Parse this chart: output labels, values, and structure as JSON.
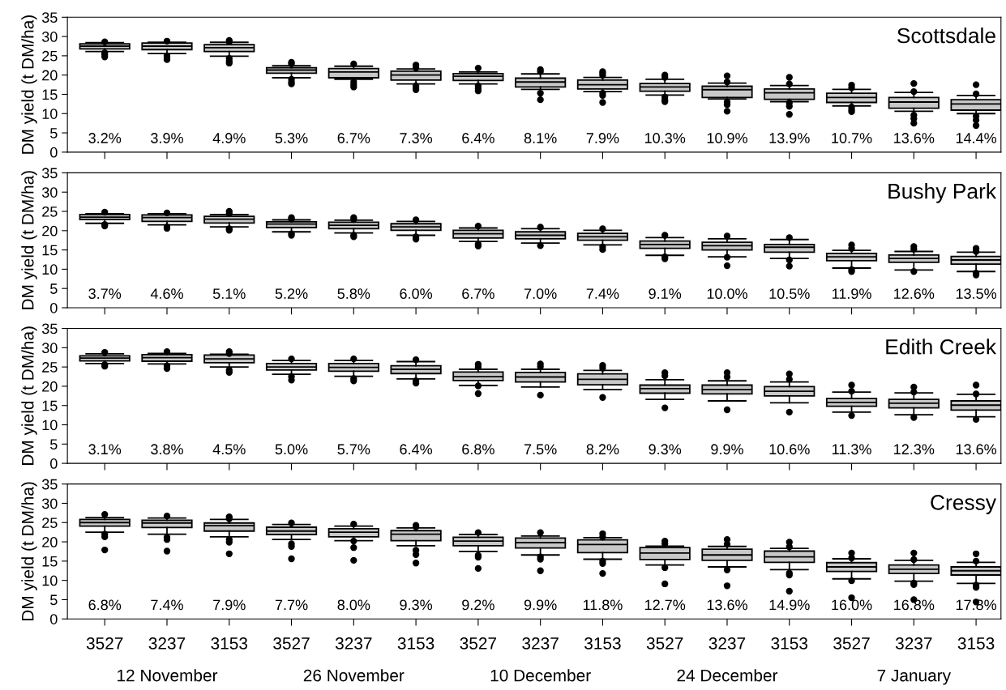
{
  "chart_data": [
    {
      "type": "box",
      "title": "Scottsdale",
      "ylabel": "DM yield (t DM/ha)",
      "categories": [
        "3527",
        "3237",
        "3153",
        "3527",
        "3237",
        "3153",
        "3527",
        "3237",
        "3153",
        "3527",
        "3237",
        "3153",
        "3527",
        "3237",
        "3153"
      ],
      "ylim": [
        0,
        35
      ],
      "yticks": [
        0,
        5,
        10,
        15,
        20,
        25,
        30,
        35
      ],
      "tick_labels": "y",
      "color": "#c8c8c8",
      "value_labels": [
        "3.2%",
        "3.9%",
        "4.9%",
        "5.3%",
        "6.7%",
        "7.3%",
        "6.4%",
        "8.1%",
        "7.9%",
        "10.3%",
        "10.9%",
        "13.9%",
        "10.7%",
        "13.6%",
        "14.4%"
      ],
      "boxes": [
        {
          "low": 26.1,
          "q1": 26.8,
          "median": 27.5,
          "q3": 28.1,
          "high": 28.4,
          "outliers": [
            28.6,
            25.8,
            25.3,
            24.7
          ]
        },
        {
          "low": 25.6,
          "q1": 26.6,
          "median": 27.5,
          "q3": 28.3,
          "high": 28.5,
          "outliers": [
            28.8,
            25.0,
            24.5,
            24.0
          ]
        },
        {
          "low": 24.9,
          "q1": 26.1,
          "median": 27.1,
          "q3": 27.9,
          "high": 28.5,
          "outliers": [
            29.0,
            28.6,
            24.3,
            23.6,
            23.1
          ]
        },
        {
          "low": 19.3,
          "q1": 20.5,
          "median": 21.3,
          "q3": 21.9,
          "high": 22.4,
          "outliers": [
            23.3,
            22.9,
            18.9,
            18.2,
            17.7
          ]
        },
        {
          "low": 18.9,
          "q1": 19.3,
          "median": 20.8,
          "q3": 21.7,
          "high": 22.3,
          "outliers": [
            22.9,
            18.2,
            17.5,
            16.9
          ]
        },
        {
          "low": 17.7,
          "q1": 18.7,
          "median": 20.0,
          "q3": 21.0,
          "high": 21.6,
          "outliers": [
            22.6,
            21.9,
            17.2,
            16.7,
            16.2
          ]
        },
        {
          "low": 17.7,
          "q1": 18.6,
          "median": 19.7,
          "q3": 20.4,
          "high": 20.8,
          "outliers": [
            21.8,
            17.2,
            16.5,
            15.9
          ]
        },
        {
          "low": 16.3,
          "q1": 16.9,
          "median": 18.2,
          "q3": 19.2,
          "high": 20.3,
          "outliers": [
            21.4,
            20.9,
            15.3,
            13.6
          ]
        },
        {
          "low": 15.7,
          "q1": 16.4,
          "median": 17.5,
          "q3": 18.7,
          "high": 19.4,
          "outliers": [
            20.9,
            20.4,
            19.9,
            15.3,
            14.7,
            12.9
          ]
        },
        {
          "low": 14.8,
          "q1": 15.8,
          "median": 16.9,
          "q3": 17.8,
          "high": 18.9,
          "outliers": [
            20.0,
            19.4,
            14.3,
            13.6,
            13.1
          ]
        },
        {
          "low": 13.8,
          "q1": 14.2,
          "median": 16.2,
          "q3": 17.1,
          "high": 17.9,
          "outliers": [
            19.8,
            18.2,
            13.0,
            12.3,
            10.6
          ]
        },
        {
          "low": 13.1,
          "q1": 13.7,
          "median": 15.4,
          "q3": 16.4,
          "high": 17.3,
          "outliers": [
            19.4,
            17.7,
            12.8,
            11.9,
            9.8
          ]
        },
        {
          "low": 12.0,
          "q1": 12.9,
          "median": 14.2,
          "q3": 15.3,
          "high": 16.3,
          "outliers": [
            17.4,
            16.7,
            11.7,
            11.0,
            10.5
          ]
        },
        {
          "low": 10.6,
          "q1": 11.4,
          "median": 13.0,
          "q3": 14.2,
          "high": 15.5,
          "outliers": [
            17.8,
            15.7,
            9.6,
            8.7,
            7.5
          ]
        },
        {
          "low": 10.0,
          "q1": 10.9,
          "median": 12.5,
          "q3": 13.6,
          "high": 14.7,
          "outliers": [
            17.5,
            15.1,
            9.3,
            8.3,
            6.9
          ]
        }
      ]
    },
    {
      "type": "box",
      "title": "Bushy Park",
      "ylabel": "DM yield (t DM/ha)",
      "categories": [
        "3527",
        "3237",
        "3153",
        "3527",
        "3237",
        "3153",
        "3527",
        "3237",
        "3153",
        "3527",
        "3237",
        "3153",
        "3527",
        "3237",
        "3153"
      ],
      "ylim": [
        0,
        35
      ],
      "yticks": [
        0,
        5,
        10,
        15,
        20,
        25,
        30,
        35
      ],
      "tick_labels": "y",
      "color": "#c8c8c8",
      "value_labels": [
        "3.7%",
        "4.6%",
        "5.1%",
        "5.2%",
        "5.8%",
        "6.0%",
        "6.7%",
        "7.0%",
        "7.4%",
        "9.1%",
        "10.0%",
        "10.5%",
        "11.9%",
        "12.6%",
        "13.5%"
      ],
      "boxes": [
        {
          "low": 21.9,
          "q1": 22.9,
          "median": 23.5,
          "q3": 24.2,
          "high": 24.4,
          "outliers": [
            24.8,
            21.6,
            21.2
          ]
        },
        {
          "low": 21.5,
          "q1": 22.4,
          "median": 23.4,
          "q3": 24.1,
          "high": 24.4,
          "outliers": [
            24.6,
            21.0,
            20.6
          ]
        },
        {
          "low": 21.0,
          "q1": 22.0,
          "median": 23.0,
          "q3": 23.7,
          "high": 24.2,
          "outliers": [
            25.0,
            24.4,
            20.5,
            20.1
          ]
        },
        {
          "low": 19.7,
          "q1": 20.8,
          "median": 21.7,
          "q3": 22.3,
          "high": 22.8,
          "outliers": [
            23.4,
            23.0,
            19.2,
            18.8
          ]
        },
        {
          "low": 19.4,
          "q1": 20.5,
          "median": 21.4,
          "q3": 22.2,
          "high": 22.7,
          "outliers": [
            23.4,
            22.9,
            18.8,
            18.4
          ]
        },
        {
          "low": 18.8,
          "q1": 20.1,
          "median": 21.0,
          "q3": 21.8,
          "high": 22.4,
          "outliers": [
            22.8,
            18.4,
            17.8
          ]
        },
        {
          "low": 17.2,
          "q1": 18.1,
          "median": 19.2,
          "q3": 20.1,
          "high": 20.7,
          "outliers": [
            21.2,
            16.5,
            16.0
          ]
        },
        {
          "low": 16.8,
          "q1": 17.9,
          "median": 18.8,
          "q3": 19.7,
          "high": 20.5,
          "outliers": [
            20.9,
            16.1
          ]
        },
        {
          "low": 16.3,
          "q1": 17.5,
          "median": 18.4,
          "q3": 19.3,
          "high": 20.1,
          "outliers": [
            20.5,
            15.8,
            15.1
          ]
        },
        {
          "low": 13.6,
          "q1": 15.4,
          "median": 16.4,
          "q3": 17.3,
          "high": 18.2,
          "outliers": [
            18.8,
            13.2,
            12.7
          ]
        },
        {
          "low": 13.2,
          "q1": 15.0,
          "median": 16.1,
          "q3": 17.0,
          "high": 17.9,
          "outliers": [
            18.6,
            13.1,
            10.9
          ]
        },
        {
          "low": 12.8,
          "q1": 14.4,
          "median": 15.7,
          "q3": 16.4,
          "high": 17.7,
          "outliers": [
            18.2,
            12.4,
            10.8
          ]
        },
        {
          "low": 10.3,
          "q1": 12.2,
          "median": 13.2,
          "q3": 14.1,
          "high": 14.9,
          "outliers": [
            16.3,
            15.4,
            9.9,
            9.4
          ]
        },
        {
          "low": 9.8,
          "q1": 11.8,
          "median": 12.8,
          "q3": 13.7,
          "high": 14.6,
          "outliers": [
            15.9,
            15.2,
            9.4
          ]
        },
        {
          "low": 9.4,
          "q1": 11.3,
          "median": 12.4,
          "q3": 13.3,
          "high": 14.4,
          "outliers": [
            15.4,
            14.6,
            9.0,
            8.5
          ]
        }
      ]
    },
    {
      "type": "box",
      "title": "Edith Creek",
      "ylabel": "DM yield (t DM/ha)",
      "categories": [
        "3527",
        "3237",
        "3153",
        "3527",
        "3237",
        "3153",
        "3527",
        "3237",
        "3153",
        "3527",
        "3237",
        "3153",
        "3527",
        "3237",
        "3153"
      ],
      "ylim": [
        0,
        35
      ],
      "yticks": [
        0,
        5,
        10,
        15,
        20,
        25,
        30,
        35
      ],
      "tick_labels": "y",
      "color": "#c8c8c8",
      "value_labels": [
        "3.1%",
        "3.8%",
        "4.5%",
        "5.0%",
        "5.7%",
        "6.4%",
        "6.8%",
        "7.5%",
        "8.2%",
        "9.3%",
        "9.9%",
        "10.6%",
        "11.3%",
        "12.3%",
        "13.6%"
      ],
      "boxes": [
        {
          "low": 25.9,
          "q1": 26.6,
          "median": 27.3,
          "q3": 27.9,
          "high": 28.4,
          "outliers": [
            28.8,
            25.6,
            25.2
          ]
        },
        {
          "low": 25.8,
          "q1": 26.5,
          "median": 27.4,
          "q3": 28.2,
          "high": 28.5,
          "outliers": [
            29.0,
            25.3,
            24.6
          ]
        },
        {
          "low": 25.0,
          "q1": 26.1,
          "median": 27.1,
          "q3": 28.1,
          "high": 28.3,
          "outliers": [
            29.0,
            28.5,
            24.2,
            23.6
          ]
        },
        {
          "low": 23.1,
          "q1": 24.2,
          "median": 25.0,
          "q3": 25.9,
          "high": 26.7,
          "outliers": [
            27.1,
            22.5,
            21.6
          ]
        },
        {
          "low": 22.6,
          "q1": 23.9,
          "median": 24.9,
          "q3": 25.9,
          "high": 26.7,
          "outliers": [
            27.1,
            22.0,
            21.4
          ]
        },
        {
          "low": 21.9,
          "q1": 23.3,
          "median": 24.4,
          "q3": 25.3,
          "high": 26.4,
          "outliers": [
            26.9,
            21.4,
            20.8
          ]
        },
        {
          "low": 20.2,
          "q1": 21.5,
          "median": 22.5,
          "q3": 23.7,
          "high": 24.4,
          "outliers": [
            25.7,
            25.0,
            20.1,
            18.1
          ]
        },
        {
          "low": 19.8,
          "q1": 21.1,
          "median": 22.4,
          "q3": 23.6,
          "high": 24.4,
          "outliers": [
            25.8,
            25.1,
            17.7
          ]
        },
        {
          "low": 19.1,
          "q1": 20.4,
          "median": 21.8,
          "q3": 23.2,
          "high": 24.1,
          "outliers": [
            25.4,
            24.7,
            17.1
          ]
        },
        {
          "low": 16.6,
          "q1": 18.2,
          "median": 19.4,
          "q3": 20.3,
          "high": 21.7,
          "outliers": [
            23.5,
            22.7,
            14.4
          ]
        },
        {
          "low": 16.2,
          "q1": 18.0,
          "median": 19.1,
          "q3": 20.3,
          "high": 21.4,
          "outliers": [
            23.5,
            22.4,
            13.9
          ]
        },
        {
          "low": 15.7,
          "q1": 17.5,
          "median": 18.7,
          "q3": 19.9,
          "high": 21.1,
          "outliers": [
            23.2,
            21.8,
            13.3
          ]
        },
        {
          "low": 13.3,
          "q1": 14.8,
          "median": 15.8,
          "q3": 16.8,
          "high": 18.5,
          "outliers": [
            20.3,
            18.7,
            12.4
          ]
        },
        {
          "low": 12.6,
          "q1": 14.4,
          "median": 15.6,
          "q3": 16.6,
          "high": 18.3,
          "outliers": [
            19.8,
            18.5,
            11.9
          ]
        },
        {
          "low": 12.1,
          "q1": 13.8,
          "median": 15.1,
          "q3": 16.2,
          "high": 17.9,
          "outliers": [
            20.3,
            18.0,
            11.4
          ]
        }
      ]
    },
    {
      "type": "box",
      "title": "Cressy",
      "ylabel": "DM yield (t DM/ha)",
      "categories": [
        "3527",
        "3237",
        "3153",
        "3527",
        "3237",
        "3153",
        "3527",
        "3237",
        "3153",
        "3527",
        "3237",
        "3153",
        "3527",
        "3237",
        "3153"
      ],
      "ylim": [
        0,
        35
      ],
      "yticks": [
        0,
        5,
        10,
        15,
        20,
        25,
        30,
        35
      ],
      "color": "#c8c8c8",
      "value_labels": [
        "6.8%",
        "7.4%",
        "7.9%",
        "7.7%",
        "8.0%",
        "9.3%",
        "9.2%",
        "9.9%",
        "11.8%",
        "12.7%",
        "13.6%",
        "14.9%",
        "16.0%",
        "16.8%",
        "17.8%"
      ],
      "annotations": [
        "12 November",
        "26 November",
        "10 December",
        "24 December",
        "7 January"
      ],
      "boxes": [
        {
          "low": 22.5,
          "q1": 24.1,
          "median": 25.0,
          "q3": 25.8,
          "high": 26.3,
          "outliers": [
            27.1,
            22.0,
            21.3,
            17.9
          ]
        },
        {
          "low": 22.0,
          "q1": 23.7,
          "median": 24.9,
          "q3": 25.6,
          "high": 26.2,
          "outliers": [
            26.7,
            21.2,
            20.6,
            17.6
          ]
        },
        {
          "low": 21.3,
          "q1": 22.8,
          "median": 24.2,
          "q3": 24.9,
          "high": 25.8,
          "outliers": [
            26.5,
            26.0,
            20.6,
            19.9,
            16.9
          ]
        },
        {
          "low": 20.6,
          "q1": 21.9,
          "median": 22.8,
          "q3": 23.8,
          "high": 24.5,
          "outliers": [
            24.9,
            19.5,
            18.8,
            15.6
          ]
        },
        {
          "low": 20.3,
          "q1": 21.3,
          "median": 22.5,
          "q3": 23.4,
          "high": 24.1,
          "outliers": [
            24.6,
            20.2,
            18.5,
            15.2
          ]
        },
        {
          "low": 19.0,
          "q1": 20.3,
          "median": 22.0,
          "q3": 22.9,
          "high": 23.6,
          "outliers": [
            24.3,
            23.9,
            17.8,
            16.7,
            14.5
          ]
        },
        {
          "low": 17.5,
          "q1": 19.0,
          "median": 20.2,
          "q3": 21.2,
          "high": 21.9,
          "outliers": [
            22.4,
            16.5,
            16.0,
            13.1
          ]
        },
        {
          "low": 16.6,
          "q1": 18.4,
          "median": 19.8,
          "q3": 21.0,
          "high": 21.5,
          "outliers": [
            22.4,
            16.1,
            15.5,
            12.5
          ]
        },
        {
          "low": 15.5,
          "q1": 17.2,
          "median": 19.3,
          "q3": 20.5,
          "high": 21.1,
          "outliers": [
            22.1,
            21.3,
            15.0,
            14.4,
            11.8
          ]
        },
        {
          "low": 14.0,
          "q1": 15.4,
          "median": 17.1,
          "q3": 18.5,
          "high": 18.9,
          "outliers": [
            20.2,
            19.5,
            13.3,
            9.1
          ]
        },
        {
          "low": 13.5,
          "q1": 15.2,
          "median": 16.6,
          "q3": 18.1,
          "high": 18.8,
          "outliers": [
            20.6,
            19.4,
            12.7,
            8.6
          ]
        },
        {
          "low": 12.8,
          "q1": 14.7,
          "median": 16.1,
          "q3": 17.6,
          "high": 18.3,
          "outliers": [
            19.9,
            18.7,
            11.9,
            11.4,
            7.2
          ]
        },
        {
          "low": 10.4,
          "q1": 12.3,
          "median": 13.5,
          "q3": 14.6,
          "high": 15.6,
          "outliers": [
            17.1,
            15.8,
            9.9,
            5.5
          ]
        },
        {
          "low": 9.8,
          "q1": 11.8,
          "median": 12.9,
          "q3": 14.0,
          "high": 15.2,
          "outliers": [
            17.1,
            15.4,
            9.3,
            8.9,
            5.0
          ]
        },
        {
          "low": 9.2,
          "q1": 11.4,
          "median": 12.5,
          "q3": 13.5,
          "high": 14.7,
          "outliers": [
            16.9,
            15.0,
            8.8,
            8.2,
            4.4
          ]
        }
      ]
    }
  ]
}
